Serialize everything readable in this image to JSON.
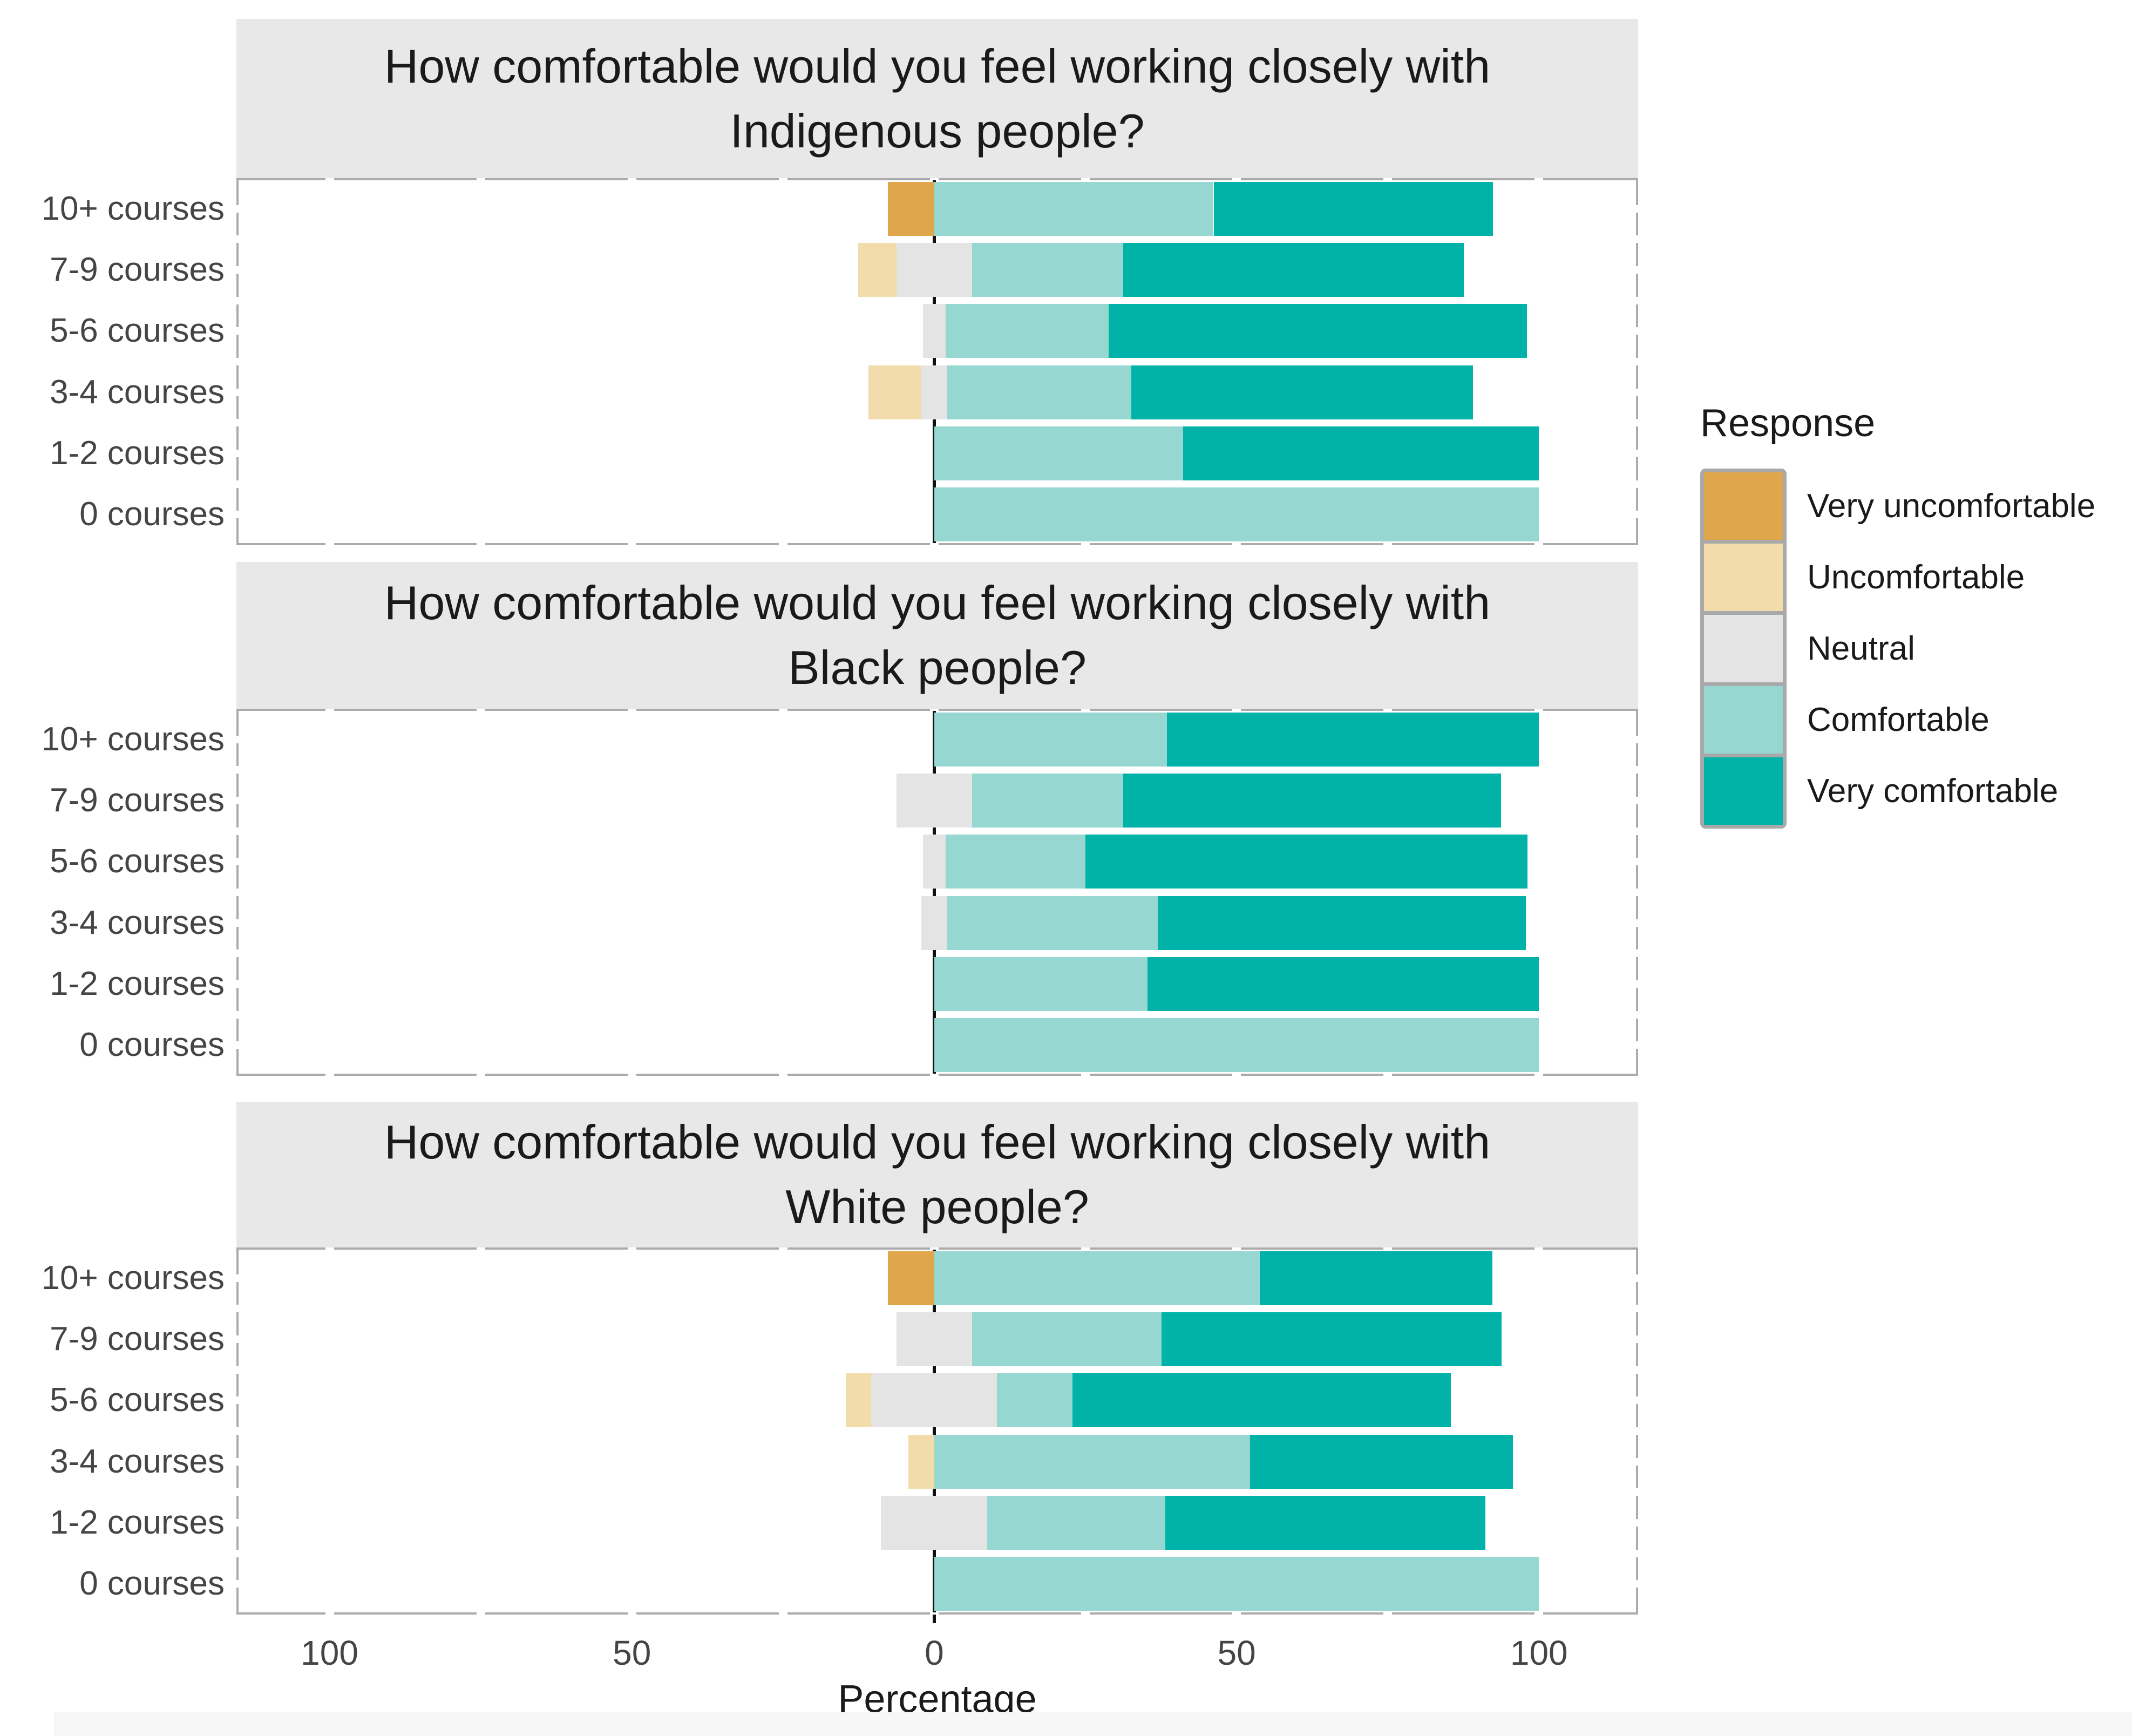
{
  "chart_data": {
    "type": "bar",
    "variant": "horizontal-diverging-stacked-likert",
    "neutral_centered_on_zero": true,
    "categories": [
      "10+ courses",
      "7-9 courses",
      "5-6 courses",
      "3-4 courses",
      "1-2 courses",
      "0 courses"
    ],
    "series_order": [
      "Very uncomfortable",
      "Uncomfortable",
      "Neutral",
      "Comfortable",
      "Very comfortable"
    ],
    "x_axis": {
      "label": "Percentage",
      "tick_labels": [
        "100",
        "50",
        "0",
        "50",
        "100"
      ],
      "tick_values": [
        -100,
        -50,
        0,
        50,
        100
      ],
      "range": [
        -115.4,
        116.4
      ],
      "grid": false
    },
    "legend": {
      "title": "Response",
      "position": "right",
      "entries": [
        {
          "label": "Very uncomfortable",
          "color": "#E0A64C"
        },
        {
          "label": "Uncomfortable",
          "color": "#F3DCAC"
        },
        {
          "label": "Neutral",
          "color": "#E4E4E4"
        },
        {
          "label": "Comfortable",
          "color": "#96D8D1"
        },
        {
          "label": "Very comfortable",
          "color": "#00B2A8"
        }
      ]
    },
    "panels": [
      {
        "title_line1": "How comfortable would you feel working closely with",
        "title_line2": "Indigenous people?",
        "rows": [
          {
            "category": "10+ courses",
            "values": [
              7.7,
              0,
              0,
              46.2,
              46.2
            ]
          },
          {
            "category": "7-9 courses",
            "values": [
              0,
              6.3,
              12.5,
              25.0,
              56.3
            ]
          },
          {
            "category": "5-6 courses",
            "values": [
              0,
              0,
              3.8,
              26.9,
              69.2
            ]
          },
          {
            "category": "3-4 courses",
            "values": [
              0,
              8.7,
              4.3,
              30.4,
              56.5
            ]
          },
          {
            "category": "1-2 courses",
            "values": [
              0,
              0,
              0,
              41.2,
              58.8
            ]
          },
          {
            "category": "0 courses",
            "values": [
              0,
              0,
              0,
              100,
              0
            ]
          }
        ]
      },
      {
        "title_line1": "How comfortable would you feel working closely with",
        "title_line2": "Black people?",
        "rows": [
          {
            "category": "10+ courses",
            "values": [
              0,
              0,
              0,
              38.5,
              61.5
            ]
          },
          {
            "category": "7-9 courses",
            "values": [
              0,
              0,
              12.5,
              25.0,
              62.5
            ]
          },
          {
            "category": "5-6 courses",
            "values": [
              0,
              0,
              3.8,
              23.1,
              73.1
            ]
          },
          {
            "category": "3-4 courses",
            "values": [
              0,
              0,
              4.3,
              34.8,
              60.9
            ]
          },
          {
            "category": "1-2 courses",
            "values": [
              0,
              0,
              0,
              35.3,
              64.7
            ]
          },
          {
            "category": "0 courses",
            "values": [
              0,
              0,
              0,
              100,
              0
            ]
          }
        ]
      },
      {
        "title_line1": "How comfortable would you feel working closely with",
        "title_line2": "White people?",
        "rows": [
          {
            "category": "10+ courses",
            "values": [
              7.7,
              0,
              0,
              53.8,
              38.5
            ]
          },
          {
            "category": "7-9 courses",
            "values": [
              0,
              0,
              12.5,
              31.3,
              56.3
            ]
          },
          {
            "category": "5-6 courses",
            "values": [
              0,
              4.2,
              20.8,
              12.5,
              62.5
            ]
          },
          {
            "category": "3-4 courses",
            "values": [
              0,
              4.3,
              0,
              52.2,
              43.5
            ]
          },
          {
            "category": "1-2 courses",
            "values": [
              0,
              0,
              17.6,
              29.4,
              52.9
            ]
          },
          {
            "category": "0 courses",
            "values": [
              0,
              0,
              0,
              100,
              0
            ]
          }
        ]
      }
    ]
  },
  "colors": {
    "strip_bg": "#E8E8E8",
    "panel_border": "#ABABAB",
    "zero_line": "#111111",
    "axis_text": "#454545",
    "title_text": "#1A1A1A",
    "page_bg": "#FFFFFF",
    "footer_strip": "#F7F7F7"
  }
}
